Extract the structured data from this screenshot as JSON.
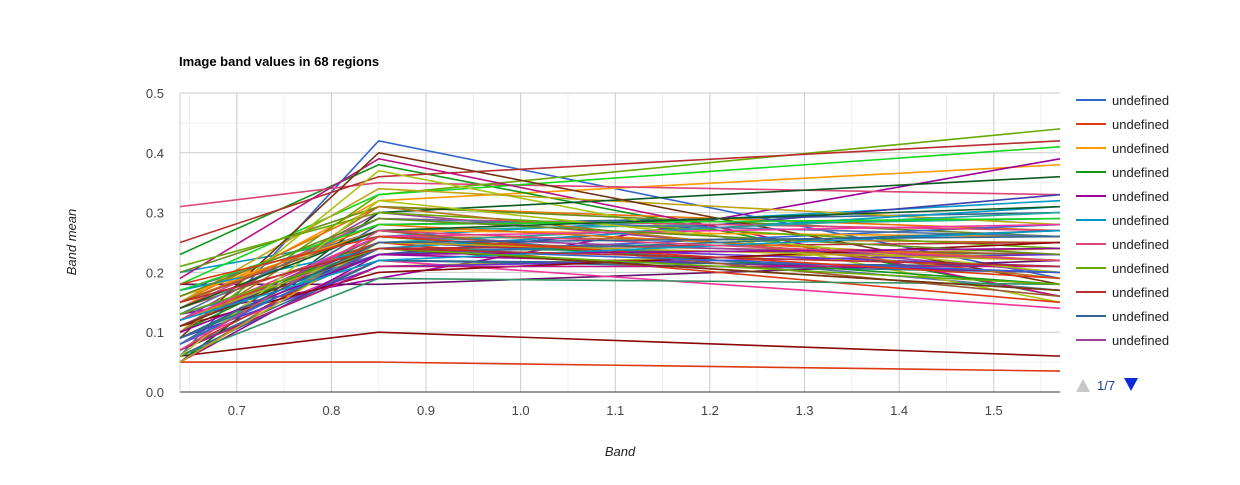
{
  "chart_data": {
    "type": "line",
    "title": "Image band values in 68 regions",
    "xlabel": "Band",
    "ylabel": "Band mean",
    "x": [
      0.64,
      0.85,
      1.57
    ],
    "xlim": [
      0.64,
      1.57
    ],
    "ylim": [
      0,
      0.5
    ],
    "x_ticks": [
      "0.7",
      "0.8",
      "0.9",
      "1.0",
      "1.1",
      "1.2",
      "1.3",
      "1.4",
      "1.5"
    ],
    "y_ticks": [
      "0.0",
      "0.1",
      "0.2",
      "0.3",
      "0.4",
      "0.5"
    ],
    "grid": true,
    "legend": {
      "position": "right",
      "page": "1/7"
    },
    "series": [
      {
        "name": "undefined",
        "color": "#3366cc",
        "values": [
          0.06,
          0.42,
          0.19
        ]
      },
      {
        "name": "undefined",
        "color": "#dc3912",
        "values": [
          0.05,
          0.05,
          0.035
        ]
      },
      {
        "name": "undefined",
        "color": "#ff9900",
        "values": [
          0.14,
          0.32,
          0.38
        ]
      },
      {
        "name": "undefined",
        "color": "#109618",
        "values": [
          0.23,
          0.38,
          0.16
        ]
      },
      {
        "name": "undefined",
        "color": "#990099",
        "values": [
          0.13,
          0.19,
          0.39
        ]
      },
      {
        "name": "undefined",
        "color": "#0099c6",
        "values": [
          0.2,
          0.26,
          0.32
        ]
      },
      {
        "name": "undefined",
        "color": "#dd4477",
        "values": [
          0.31,
          0.35,
          0.33
        ]
      },
      {
        "name": "undefined",
        "color": "#66aa00",
        "values": [
          0.1,
          0.33,
          0.44
        ]
      },
      {
        "name": "undefined",
        "color": "#b82e2e",
        "values": [
          0.25,
          0.36,
          0.42
        ]
      },
      {
        "name": "undefined",
        "color": "#316395",
        "values": [
          0.08,
          0.28,
          0.3
        ]
      },
      {
        "name": "undefined",
        "color": "#994499",
        "values": [
          0.12,
          0.3,
          0.2
        ]
      },
      {
        "name": "",
        "color": "#22aa99",
        "values": [
          0.16,
          0.27,
          0.29
        ]
      },
      {
        "name": "",
        "color": "#aaaa11",
        "values": [
          0.07,
          0.21,
          0.24
        ]
      },
      {
        "name": "",
        "color": "#6633cc",
        "values": [
          0.11,
          0.25,
          0.21
        ]
      },
      {
        "name": "",
        "color": "#e67300",
        "values": [
          0.15,
          0.31,
          0.27
        ]
      },
      {
        "name": "",
        "color": "#8b0707",
        "values": [
          0.06,
          0.1,
          0.06
        ]
      },
      {
        "name": "",
        "color": "#651067",
        "values": [
          0.18,
          0.18,
          0.22
        ]
      },
      {
        "name": "",
        "color": "#329262",
        "values": [
          0.09,
          0.24,
          0.23
        ]
      },
      {
        "name": "",
        "color": "#5574a6",
        "values": [
          0.17,
          0.27,
          0.17
        ]
      },
      {
        "name": "",
        "color": "#3b3eac",
        "values": [
          0.12,
          0.23,
          0.33
        ]
      },
      {
        "name": "",
        "color": "#b77322",
        "values": [
          0.05,
          0.26,
          0.25
        ]
      },
      {
        "name": "",
        "color": "#16d620",
        "values": [
          0.18,
          0.33,
          0.41
        ]
      },
      {
        "name": "",
        "color": "#b91383",
        "values": [
          0.19,
          0.39,
          0.16
        ]
      },
      {
        "name": "",
        "color": "#f4359e",
        "values": [
          0.08,
          0.22,
          0.14
        ]
      },
      {
        "name": "",
        "color": "#9c5935",
        "values": [
          0.14,
          0.25,
          0.23
        ]
      },
      {
        "name": "",
        "color": "#a9c413",
        "values": [
          0.1,
          0.37,
          0.15
        ]
      },
      {
        "name": "",
        "color": "#2a778d",
        "values": [
          0.07,
          0.22,
          0.2
        ]
      },
      {
        "name": "",
        "color": "#668d1c",
        "values": [
          0.2,
          0.31,
          0.26
        ]
      },
      {
        "name": "",
        "color": "#bea413",
        "values": [
          0.15,
          0.34,
          0.28
        ]
      },
      {
        "name": "",
        "color": "#0c5922",
        "values": [
          0.05,
          0.3,
          0.36
        ]
      },
      {
        "name": "",
        "color": "#743411",
        "values": [
          0.09,
          0.4,
          0.18
        ]
      },
      {
        "name": "",
        "color": "#3366cc",
        "values": [
          0.13,
          0.23,
          0.28
        ]
      },
      {
        "name": "",
        "color": "#dc3912",
        "values": [
          0.12,
          0.25,
          0.15
        ]
      },
      {
        "name": "",
        "color": "#ff9900",
        "values": [
          0.16,
          0.27,
          0.26
        ]
      },
      {
        "name": "",
        "color": "#109618",
        "values": [
          0.1,
          0.26,
          0.18
        ]
      },
      {
        "name": "",
        "color": "#990099",
        "values": [
          0.05,
          0.23,
          0.2
        ]
      },
      {
        "name": "",
        "color": "#0099c6",
        "values": [
          0.17,
          0.24,
          0.31
        ]
      },
      {
        "name": "",
        "color": "#dd4477",
        "values": [
          0.14,
          0.29,
          0.27
        ]
      },
      {
        "name": "",
        "color": "#66aa00",
        "values": [
          0.21,
          0.3,
          0.24
        ]
      },
      {
        "name": "",
        "color": "#b82e2e",
        "values": [
          0.07,
          0.24,
          0.25
        ]
      },
      {
        "name": "",
        "color": "#316395",
        "values": [
          0.06,
          0.22,
          0.21
        ]
      },
      {
        "name": "",
        "color": "#994499",
        "values": [
          0.11,
          0.26,
          0.22
        ]
      },
      {
        "name": "",
        "color": "#22aa99",
        "values": [
          0.08,
          0.25,
          0.3
        ]
      },
      {
        "name": "",
        "color": "#aaaa11",
        "values": [
          0.12,
          0.24,
          0.17
        ]
      },
      {
        "name": "",
        "color": "#6633cc",
        "values": [
          0.09,
          0.21,
          0.23
        ]
      },
      {
        "name": "",
        "color": "#e67300",
        "values": [
          0.15,
          0.28,
          0.22
        ]
      },
      {
        "name": "",
        "color": "#8b0707",
        "values": [
          0.11,
          0.2,
          0.25
        ]
      },
      {
        "name": "",
        "color": "#329262",
        "values": [
          0.06,
          0.19,
          0.18
        ]
      },
      {
        "name": "",
        "color": "#5574a6",
        "values": [
          0.13,
          0.29,
          0.26
        ]
      },
      {
        "name": "",
        "color": "#b77322",
        "values": [
          0.1,
          0.31,
          0.19
        ]
      },
      {
        "name": "",
        "color": "#16d620",
        "values": [
          0.17,
          0.28,
          0.29
        ]
      },
      {
        "name": "",
        "color": "#b91383",
        "values": [
          0.07,
          0.21,
          0.21
        ]
      },
      {
        "name": "",
        "color": "#f4359e",
        "values": [
          0.12,
          0.26,
          0.28
        ]
      },
      {
        "name": "",
        "color": "#9c5935",
        "values": [
          0.15,
          0.27,
          0.16
        ]
      },
      {
        "name": "",
        "color": "#a9c413",
        "values": [
          0.06,
          0.32,
          0.2
        ]
      },
      {
        "name": "",
        "color": "#2a778d",
        "values": [
          0.09,
          0.23,
          0.27
        ]
      },
      {
        "name": "",
        "color": "#668d1c",
        "values": [
          0.16,
          0.29,
          0.23
        ]
      },
      {
        "name": "",
        "color": "#bea413",
        "values": [
          0.05,
          0.25,
          0.22
        ]
      },
      {
        "name": "",
        "color": "#0c5922",
        "values": [
          0.14,
          0.27,
          0.31
        ]
      },
      {
        "name": "",
        "color": "#743411",
        "values": [
          0.11,
          0.24,
          0.17
        ]
      },
      {
        "name": "",
        "color": "#3366cc",
        "values": [
          0.08,
          0.24,
          0.2
        ]
      },
      {
        "name": "",
        "color": "#dc3912",
        "values": [
          0.18,
          0.26,
          0.19
        ]
      },
      {
        "name": "",
        "color": "#990099",
        "values": [
          0.1,
          0.23,
          0.24
        ]
      },
      {
        "name": "",
        "color": "#0099c6",
        "values": [
          0.12,
          0.22,
          0.27
        ]
      },
      {
        "name": "",
        "color": "#dd4477",
        "values": [
          0.07,
          0.27,
          0.22
        ]
      },
      {
        "name": "",
        "color": "#66aa00",
        "values": [
          0.13,
          0.24,
          0.18
        ]
      },
      {
        "name": "",
        "color": "#316395",
        "values": [
          0.09,
          0.25,
          0.26
        ]
      },
      {
        "name": "",
        "color": "#b82e2e",
        "values": [
          0.15,
          0.24,
          0.21
        ]
      }
    ]
  }
}
